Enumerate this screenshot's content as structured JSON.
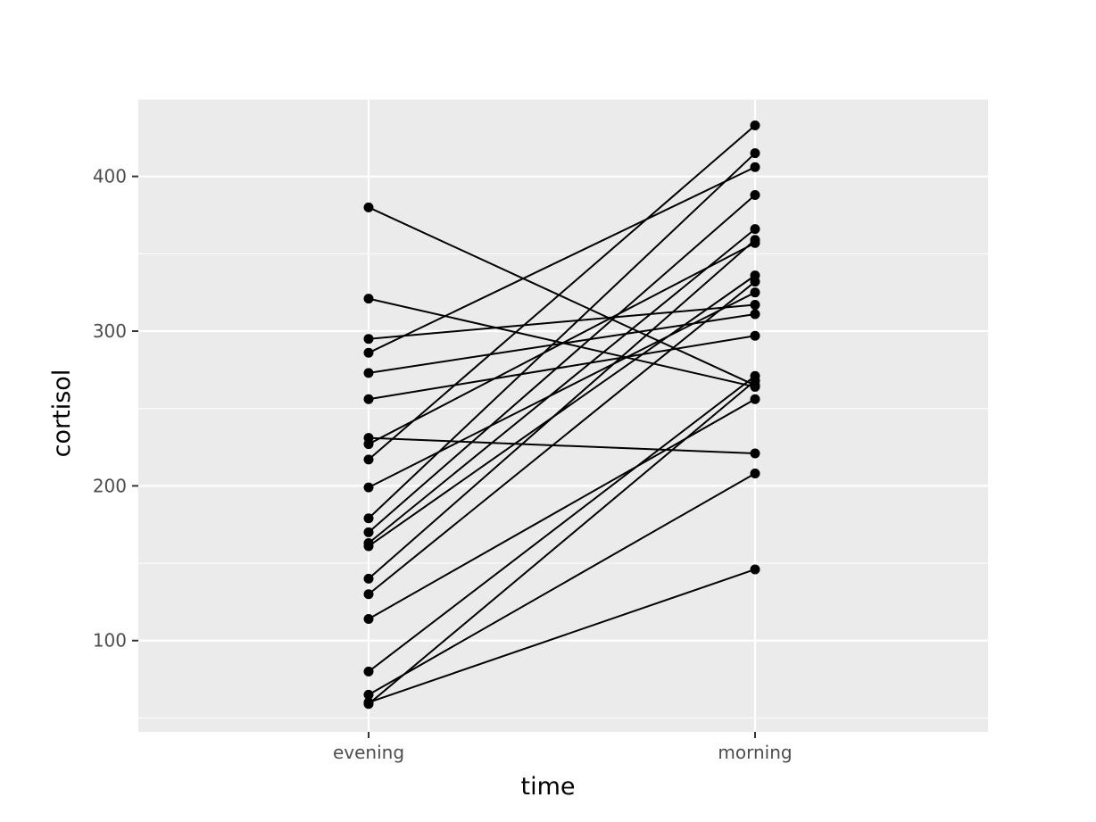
{
  "chart_data": {
    "type": "line",
    "title": "",
    "xlabel": "time",
    "ylabel": "cortisol",
    "categories": [
      "evening",
      "morning"
    ],
    "ylim": [
      41,
      450
    ],
    "y_ticks": [
      100,
      200,
      300,
      400
    ],
    "y_tick_labels": [
      "100",
      "200",
      "300",
      "400"
    ],
    "grid": true,
    "legend": "none",
    "colors": {
      "panel": "#ebebeb",
      "grid": "#ffffff",
      "line": "#000000",
      "tick_text": "#4d4d4d"
    },
    "series": [
      {
        "values": [
          380,
          265
        ]
      },
      {
        "values": [
          321,
          264
        ]
      },
      {
        "values": [
          295,
          317
        ]
      },
      {
        "values": [
          286,
          406
        ]
      },
      {
        "values": [
          273,
          311
        ]
      },
      {
        "values": [
          256,
          297
        ]
      },
      {
        "values": [
          231,
          221
        ]
      },
      {
        "values": [
          227,
          357
        ]
      },
      {
        "values": [
          217,
          433
        ]
      },
      {
        "values": [
          199,
          325
        ]
      },
      {
        "values": [
          179,
          415
        ]
      },
      {
        "values": [
          170,
          388
        ]
      },
      {
        "values": [
          163,
          366
        ]
      },
      {
        "values": [
          161,
          336
        ]
      },
      {
        "values": [
          140,
          359
        ]
      },
      {
        "values": [
          130,
          332
        ]
      },
      {
        "values": [
          114,
          256
        ]
      },
      {
        "values": [
          80,
          271
        ]
      },
      {
        "values": [
          65,
          208
        ]
      },
      {
        "values": [
          60,
          146
        ]
      },
      {
        "values": [
          59,
          268
        ]
      }
    ]
  }
}
